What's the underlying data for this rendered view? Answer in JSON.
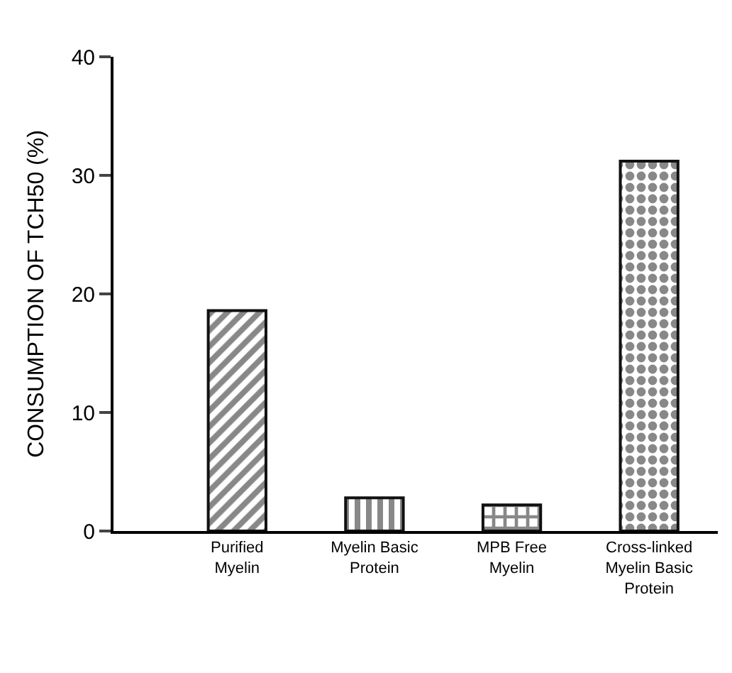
{
  "chart_data": {
    "type": "bar",
    "ylabel": "CONSUMPTION OF TCH50 (%)",
    "categories": [
      "Purified\nMyelin",
      "Myelin Basic\nProtein",
      "MPB Free\nMyelin",
      "Cross-linked\nMyelin Basic\nProtein"
    ],
    "values": [
      18.6,
      2.8,
      2.2,
      31.2
    ],
    "color": "#111111",
    "ylim": [
      0,
      40
    ],
    "yticks": [
      0,
      10,
      20,
      30,
      40
    ]
  }
}
